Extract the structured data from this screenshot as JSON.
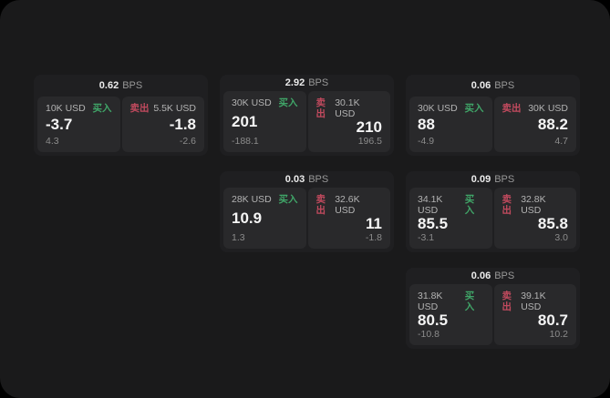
{
  "page": {
    "bps_suffix": "BPS"
  },
  "labels": {
    "buy": "买入",
    "sell": "卖出"
  },
  "colors": {
    "buy_green": "#40a568",
    "sell_red": "#c24a5e",
    "page_bg": "#1a1a1b",
    "card_bg": "#1f1f21",
    "panel_bg": "#29292b"
  },
  "cards": [
    {
      "bps": "0.62",
      "buy": {
        "amount": "10K USD",
        "value": "-3.7",
        "delta": "4.3"
      },
      "sell": {
        "amount": "5.5K USD",
        "value": "-1.8",
        "delta": "-2.6"
      }
    },
    {
      "bps": "2.92",
      "buy": {
        "amount": "30K USD",
        "value": "201",
        "delta": "-188.1"
      },
      "sell": {
        "amount": "30.1K USD",
        "value": "210",
        "delta": "196.5"
      }
    },
    {
      "bps": "0.06",
      "buy": {
        "amount": "30K USD",
        "value": "88",
        "delta": "-4.9"
      },
      "sell": {
        "amount": "30K USD",
        "value": "88.2",
        "delta": "4.7"
      }
    },
    {
      "bps": "0.03",
      "buy": {
        "amount": "28K USD",
        "value": "10.9",
        "delta": "1.3"
      },
      "sell": {
        "amount": "32.6K USD",
        "value": "11",
        "delta": "-1.8"
      }
    },
    {
      "bps": "0.09",
      "buy": {
        "amount": "34.1K USD",
        "value": "85.5",
        "delta": "-3.1"
      },
      "sell": {
        "amount": "32.8K USD",
        "value": "85.8",
        "delta": "3.0"
      }
    },
    {
      "bps": "0.06",
      "buy": {
        "amount": "31.8K USD",
        "value": "80.5",
        "delta": "-10.8"
      },
      "sell": {
        "amount": "39.1K USD",
        "value": "80.7",
        "delta": "10.2"
      }
    }
  ]
}
